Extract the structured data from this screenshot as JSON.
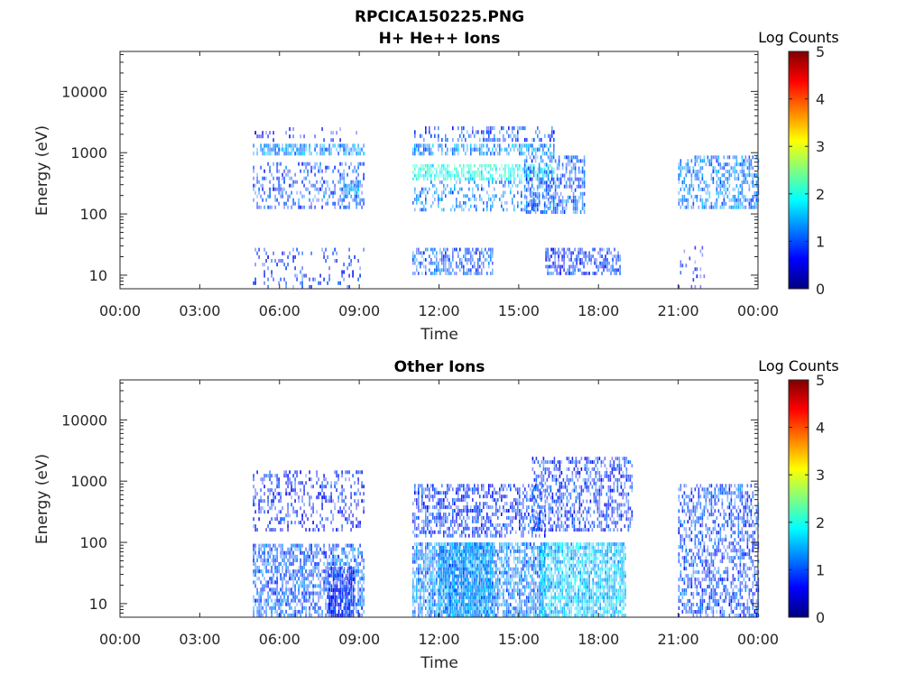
{
  "figure": {
    "title": "RPCICA150225.PNG"
  },
  "chart_data": [
    {
      "type": "heatmap",
      "title": "H+ He++ Ions",
      "xlabel": "Time",
      "ylabel": "Energy (eV)",
      "y_scale": "log",
      "ylim": [
        6,
        45000
      ],
      "xlim": [
        "00:00",
        "24:00"
      ],
      "x_ticks": [
        "00:00",
        "03:00",
        "06:00",
        "09:00",
        "12:00",
        "15:00",
        "18:00",
        "21:00",
        "00:00"
      ],
      "y_ticks": [
        "10",
        "100",
        "1000",
        "10000"
      ],
      "colorbar": {
        "label": "Log Counts",
        "range": [
          0,
          5
        ],
        "ticks": [
          "0",
          "1",
          "2",
          "3",
          "4",
          "5"
        ],
        "colormap": "jet"
      },
      "regions": [
        {
          "t_start": 5.0,
          "t_end": 9.2,
          "e_min": 900,
          "e_max": 1400,
          "level": 0.9,
          "density": 0.7
        },
        {
          "t_start": 5.0,
          "t_end": 9.2,
          "e_min": 120,
          "e_max": 700,
          "level": 0.5,
          "density": 0.35
        },
        {
          "t_start": 8.4,
          "t_end": 9.0,
          "e_min": 180,
          "e_max": 350,
          "level": 1.0,
          "density": 0.6
        },
        {
          "t_start": 5.0,
          "t_end": 9.2,
          "e_min": 6,
          "e_max": 28,
          "level": 0.3,
          "density": 0.15
        },
        {
          "t_start": 5.0,
          "t_end": 9.2,
          "e_min": 1500,
          "e_max": 2600,
          "level": 0.2,
          "density": 0.1
        },
        {
          "t_start": 11.0,
          "t_end": 16.3,
          "e_min": 900,
          "e_max": 1400,
          "level": 0.9,
          "density": 0.6
        },
        {
          "t_start": 11.0,
          "t_end": 16.3,
          "e_min": 350,
          "e_max": 650,
          "level": 1.6,
          "density": 0.65
        },
        {
          "t_start": 11.0,
          "t_end": 16.3,
          "e_min": 110,
          "e_max": 350,
          "level": 0.8,
          "density": 0.3
        },
        {
          "t_start": 11.0,
          "t_end": 16.3,
          "e_min": 1500,
          "e_max": 2700,
          "level": 0.5,
          "density": 0.3
        },
        {
          "t_start": 11.0,
          "t_end": 14.0,
          "e_min": 10,
          "e_max": 28,
          "level": 0.6,
          "density": 0.5
        },
        {
          "t_start": 16.0,
          "t_end": 18.8,
          "e_min": 10,
          "e_max": 28,
          "level": 0.4,
          "density": 0.6
        },
        {
          "t_start": 15.2,
          "t_end": 17.5,
          "e_min": 100,
          "e_max": 900,
          "level": 0.6,
          "density": 0.5
        },
        {
          "t_start": 21.0,
          "t_end": 24.0,
          "e_min": 120,
          "e_max": 900,
          "level": 0.8,
          "density": 0.5
        },
        {
          "t_start": 21.0,
          "t_end": 22.0,
          "e_min": 6,
          "e_max": 30,
          "level": 0.2,
          "density": 0.15
        }
      ]
    },
    {
      "type": "heatmap",
      "title": "Other Ions",
      "xlabel": "Time",
      "ylabel": "Energy (eV)",
      "y_scale": "log",
      "ylim": [
        6,
        45000
      ],
      "xlim": [
        "00:00",
        "24:00"
      ],
      "x_ticks": [
        "00:00",
        "03:00",
        "06:00",
        "09:00",
        "12:00",
        "15:00",
        "18:00",
        "21:00",
        "00:00"
      ],
      "y_ticks": [
        "10",
        "100",
        "1000",
        "10000"
      ],
      "colorbar": {
        "label": "Log Counts",
        "range": [
          0,
          5
        ],
        "ticks": [
          "0",
          "1",
          "2",
          "3",
          "4",
          "5"
        ],
        "colormap": "jet"
      },
      "regions": [
        {
          "t_start": 5.0,
          "t_end": 9.2,
          "e_min": 6,
          "e_max": 95,
          "level": 0.6,
          "density": 0.6
        },
        {
          "t_start": 7.8,
          "t_end": 8.8,
          "e_min": 6,
          "e_max": 40,
          "level": 0.2,
          "density": 0.8
        },
        {
          "t_start": 5.0,
          "t_end": 9.2,
          "e_min": 150,
          "e_max": 1500,
          "level": 0.3,
          "density": 0.3
        },
        {
          "t_start": 11.0,
          "t_end": 16.0,
          "e_min": 6,
          "e_max": 100,
          "level": 0.8,
          "density": 0.75
        },
        {
          "t_start": 12.0,
          "t_end": 14.0,
          "e_min": 6,
          "e_max": 100,
          "level": 1.0,
          "density": 0.85
        },
        {
          "t_start": 11.0,
          "t_end": 16.0,
          "e_min": 120,
          "e_max": 900,
          "level": 0.4,
          "density": 0.5
        },
        {
          "t_start": 15.8,
          "t_end": 19.0,
          "e_min": 6,
          "e_max": 100,
          "level": 1.2,
          "density": 0.8
        },
        {
          "t_start": 15.5,
          "t_end": 19.3,
          "e_min": 150,
          "e_max": 2500,
          "level": 0.4,
          "density": 0.45
        },
        {
          "t_start": 21.0,
          "t_end": 24.0,
          "e_min": 6,
          "e_max": 900,
          "level": 0.5,
          "density": 0.5
        }
      ]
    }
  ]
}
